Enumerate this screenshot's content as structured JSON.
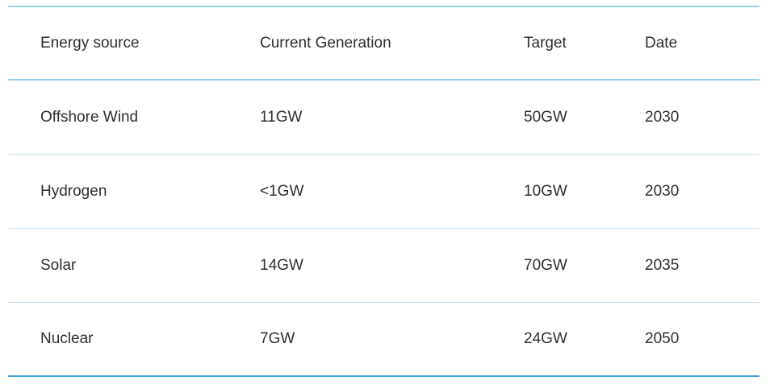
{
  "table": {
    "headers": [
      "Energy source",
      "Current Generation",
      "Target",
      "Date"
    ],
    "rows": [
      [
        "Offshore Wind",
        "11GW",
        "50GW",
        "2030"
      ],
      [
        "Hydrogen",
        "<1GW",
        "10GW",
        "2030"
      ],
      [
        "Solar",
        "14GW",
        "70GW",
        "2035"
      ],
      [
        "Nuclear",
        "7GW",
        "24GW",
        "2050"
      ]
    ]
  },
  "colors": {
    "header_rule": "#9ad3ef",
    "row_rule": "#c6e6f4",
    "bottom_rule": "#3aa0e0",
    "text": "#2e2e2e"
  }
}
